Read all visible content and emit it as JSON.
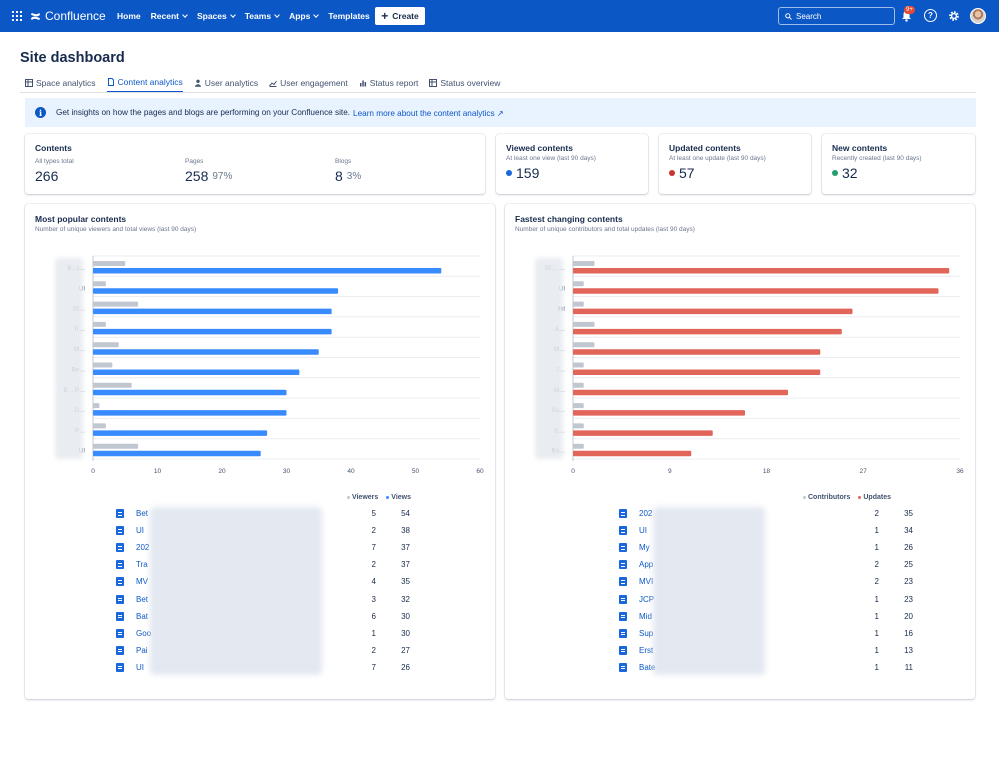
{
  "topbar": {
    "product": "Confluence",
    "nav": [
      "Home",
      "Recent",
      "Spaces",
      "Teams",
      "Apps",
      "Templates"
    ],
    "nav_caret": [
      false,
      true,
      true,
      true,
      true,
      false
    ],
    "create_label": "Create",
    "search_placeholder": "Search",
    "notifications_badge": "9+",
    "help_label": "?"
  },
  "page": {
    "title": "Site dashboard",
    "tabs": [
      {
        "label": "Space analytics",
        "icon": "table-icon",
        "active": false
      },
      {
        "label": "Content analytics",
        "icon": "page-icon",
        "active": true
      },
      {
        "label": "User analytics",
        "icon": "person-icon",
        "active": false
      },
      {
        "label": "User engagement",
        "icon": "line-chart-icon",
        "active": false
      },
      {
        "label": "Status report",
        "icon": "bar-chart-icon",
        "active": false
      },
      {
        "label": "Status overview",
        "icon": "table-icon",
        "active": false
      }
    ],
    "banner_text": "Get insights on how the pages and blogs are performing on your Confluence site.",
    "banner_link": "Learn more about the content analytics ↗"
  },
  "stats": {
    "contents": {
      "title": "Contents",
      "total_sub": "All types total",
      "total": "266",
      "pages_sub": "Pages",
      "pages": "258",
      "pages_pct": "97%",
      "blogs_sub": "Blogs",
      "blogs": "8",
      "blogs_pct": "3%"
    },
    "viewed": {
      "title": "Viewed contents",
      "sub": "At least one view (last 90 days)",
      "value": "159",
      "color": "#1868db"
    },
    "updated": {
      "title": "Updated contents",
      "sub": "At least one update (last 90 days)",
      "value": "57",
      "color": "#c9372c"
    },
    "new": {
      "title": "New contents",
      "sub": "Recently created (last 90 days)",
      "value": "32",
      "color": "#22a06b"
    }
  },
  "popular": {
    "title": "Most popular contents",
    "subtitle": "Number of unique viewers and total views (last 90 days)",
    "legend": [
      "Viewers",
      "Views"
    ],
    "rows": [
      {
        "short": "Bet",
        "axis": "B…t…",
        "viewers": 5,
        "views": 54
      },
      {
        "short": "UI",
        "axis": "UI",
        "viewers": 2,
        "views": 38
      },
      {
        "short": "202",
        "axis": "20…",
        "viewers": 7,
        "views": 37
      },
      {
        "short": "Tra",
        "axis": "Tr…",
        "viewers": 2,
        "views": 37
      },
      {
        "short": "MV",
        "axis": "M…",
        "viewers": 4,
        "views": 35
      },
      {
        "short": "Bet",
        "axis": "Be…",
        "viewers": 3,
        "views": 32
      },
      {
        "short": "Bat",
        "axis": "B… P…",
        "viewers": 6,
        "views": 30
      },
      {
        "short": "Goo",
        "axis": "G…",
        "viewers": 1,
        "views": 30
      },
      {
        "short": "Pai",
        "axis": "P…",
        "viewers": 2,
        "views": 27
      },
      {
        "short": "UI",
        "axis": "UI",
        "viewers": 7,
        "views": 26
      }
    ]
  },
  "changing": {
    "title": "Fastest changing contents",
    "subtitle": "Number of unique contributors and total updates (last 90 days)",
    "legend": [
      "Contributors",
      "Updates"
    ],
    "rows": [
      {
        "short": "202",
        "axis": "20… …",
        "contributors": 2,
        "updates": 35
      },
      {
        "short": "UI",
        "axis": "UI",
        "contributors": 1,
        "updates": 34
      },
      {
        "short": "My",
        "axis": "list",
        "contributors": 1,
        "updates": 26
      },
      {
        "short": "App",
        "axis": "A…",
        "contributors": 2,
        "updates": 25
      },
      {
        "short": "MVI",
        "axis": "M…",
        "contributors": 2,
        "updates": 23
      },
      {
        "short": "JCP",
        "axis": "J…",
        "contributors": 1,
        "updates": 23
      },
      {
        "short": "Mid",
        "axis": "M…",
        "contributors": 1,
        "updates": 20
      },
      {
        "short": "Sup",
        "axis": "Su…",
        "contributors": 1,
        "updates": 16
      },
      {
        "short": "Erst",
        "axis": "E…",
        "contributors": 1,
        "updates": 13
      },
      {
        "short": "Bate",
        "axis": "Ba…",
        "contributors": 1,
        "updates": 11
      }
    ]
  },
  "chart_data": [
    {
      "type": "bar",
      "title": "Most popular contents",
      "orientation": "horizontal",
      "categories": [
        "B…t…",
        "UI",
        "20…",
        "Tr…",
        "M…",
        "Be…",
        "B… P…",
        "G…",
        "P…",
        "UI"
      ],
      "series": [
        {
          "name": "Viewers",
          "values": [
            5,
            2,
            7,
            2,
            4,
            3,
            6,
            1,
            2,
            7
          ],
          "color": "#c1c7d0"
        },
        {
          "name": "Views",
          "values": [
            54,
            38,
            37,
            37,
            35,
            32,
            30,
            30,
            27,
            26
          ],
          "color": "#388bff"
        }
      ],
      "xlim": [
        0,
        60
      ],
      "xticks": [
        0,
        10,
        20,
        30,
        40,
        50,
        60
      ],
      "grid": true,
      "legend": "bottom-right"
    },
    {
      "type": "bar",
      "title": "Fastest changing contents",
      "orientation": "horizontal",
      "categories": [
        "20… …",
        "UI",
        "list",
        "A…",
        "M…",
        "J…",
        "M…",
        "Su…",
        "E…",
        "Ba…"
      ],
      "series": [
        {
          "name": "Contributors",
          "values": [
            2,
            1,
            1,
            2,
            2,
            1,
            1,
            1,
            1,
            1
          ],
          "color": "#c1c7d0"
        },
        {
          "name": "Updates",
          "values": [
            35,
            34,
            26,
            25,
            23,
            23,
            20,
            16,
            13,
            11
          ],
          "color": "#e2655a"
        }
      ],
      "xlim": [
        0,
        36
      ],
      "xticks": [
        0,
        9,
        18,
        27,
        36
      ],
      "grid": true,
      "legend": "bottom-right"
    }
  ]
}
